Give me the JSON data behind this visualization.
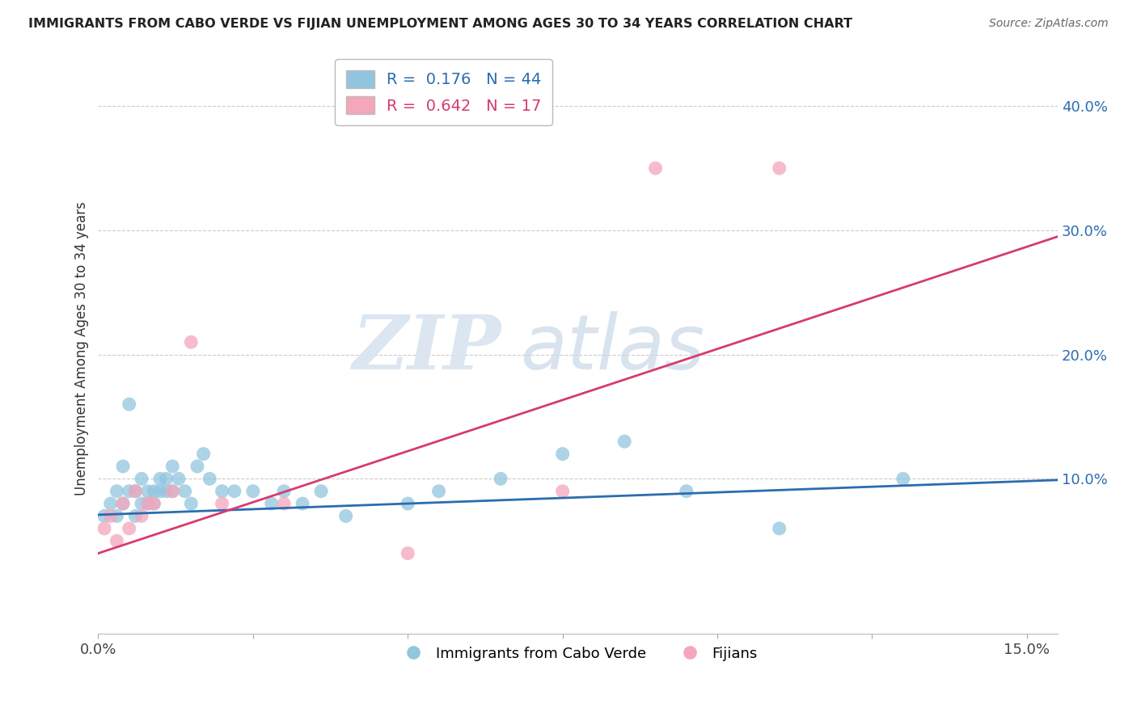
{
  "title": "IMMIGRANTS FROM CABO VERDE VS FIJIAN UNEMPLOYMENT AMONG AGES 30 TO 34 YEARS CORRELATION CHART",
  "source": "Source: ZipAtlas.com",
  "ylabel": "Unemployment Among Ages 30 to 34 years",
  "ytick_labels": [
    "40.0%",
    "30.0%",
    "20.0%",
    "10.0%"
  ],
  "ytick_values": [
    0.4,
    0.3,
    0.2,
    0.1
  ],
  "xlim": [
    0.0,
    0.155
  ],
  "ylim": [
    -0.025,
    0.435
  ],
  "blue_R": 0.176,
  "blue_N": 44,
  "pink_R": 0.642,
  "pink_N": 17,
  "blue_color": "#92c5de",
  "pink_color": "#f4a6ba",
  "blue_line_color": "#2b6cb0",
  "pink_line_color": "#d63b6e",
  "watermark_zip": "ZIP",
  "watermark_atlas": "atlas",
  "legend_label_blue": "Immigrants from Cabo Verde",
  "legend_label_pink": "Fijians",
  "blue_points_x": [
    0.001,
    0.002,
    0.003,
    0.003,
    0.004,
    0.004,
    0.005,
    0.005,
    0.006,
    0.006,
    0.007,
    0.007,
    0.008,
    0.008,
    0.009,
    0.009,
    0.01,
    0.01,
    0.011,
    0.011,
    0.012,
    0.012,
    0.013,
    0.014,
    0.015,
    0.016,
    0.017,
    0.018,
    0.02,
    0.022,
    0.025,
    0.028,
    0.03,
    0.033,
    0.036,
    0.04,
    0.05,
    0.055,
    0.065,
    0.075,
    0.085,
    0.095,
    0.11,
    0.13
  ],
  "blue_points_y": [
    0.07,
    0.08,
    0.09,
    0.07,
    0.11,
    0.08,
    0.16,
    0.09,
    0.07,
    0.09,
    0.08,
    0.1,
    0.09,
    0.08,
    0.09,
    0.08,
    0.09,
    0.1,
    0.1,
    0.09,
    0.11,
    0.09,
    0.1,
    0.09,
    0.08,
    0.11,
    0.12,
    0.1,
    0.09,
    0.09,
    0.09,
    0.08,
    0.09,
    0.08,
    0.09,
    0.07,
    0.08,
    0.09,
    0.1,
    0.12,
    0.13,
    0.09,
    0.06,
    0.1
  ],
  "pink_points_x": [
    0.001,
    0.002,
    0.003,
    0.004,
    0.005,
    0.006,
    0.007,
    0.008,
    0.009,
    0.012,
    0.015,
    0.02,
    0.03,
    0.05,
    0.075,
    0.09,
    0.11
  ],
  "pink_points_y": [
    0.06,
    0.07,
    0.05,
    0.08,
    0.06,
    0.09,
    0.07,
    0.08,
    0.08,
    0.09,
    0.21,
    0.08,
    0.08,
    0.04,
    0.09,
    0.35,
    0.35
  ],
  "blue_line_x": [
    0.0,
    0.155
  ],
  "blue_line_y": [
    0.071,
    0.099
  ],
  "pink_line_x": [
    0.0,
    0.155
  ],
  "pink_line_y": [
    0.04,
    0.295
  ],
  "xtick_positions": [
    0.0,
    0.025,
    0.05,
    0.075,
    0.1,
    0.125,
    0.15
  ],
  "xtick_labels_show": [
    "0.0%",
    "",
    "",
    "",
    "",
    "",
    "15.0%"
  ]
}
